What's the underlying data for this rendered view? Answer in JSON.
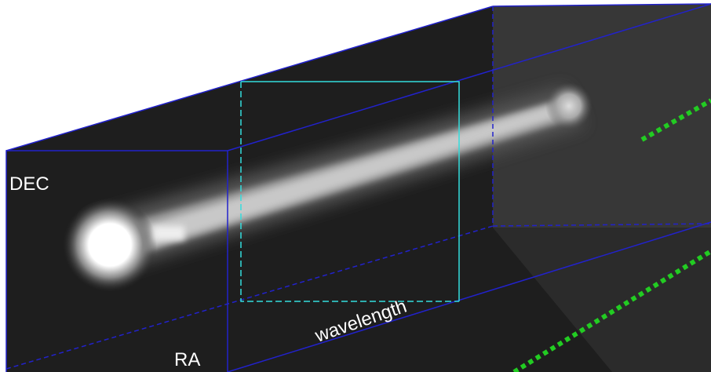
{
  "labels": {
    "dec": "DEC",
    "ra": "RA",
    "wavelength": "wavelength"
  }
}
